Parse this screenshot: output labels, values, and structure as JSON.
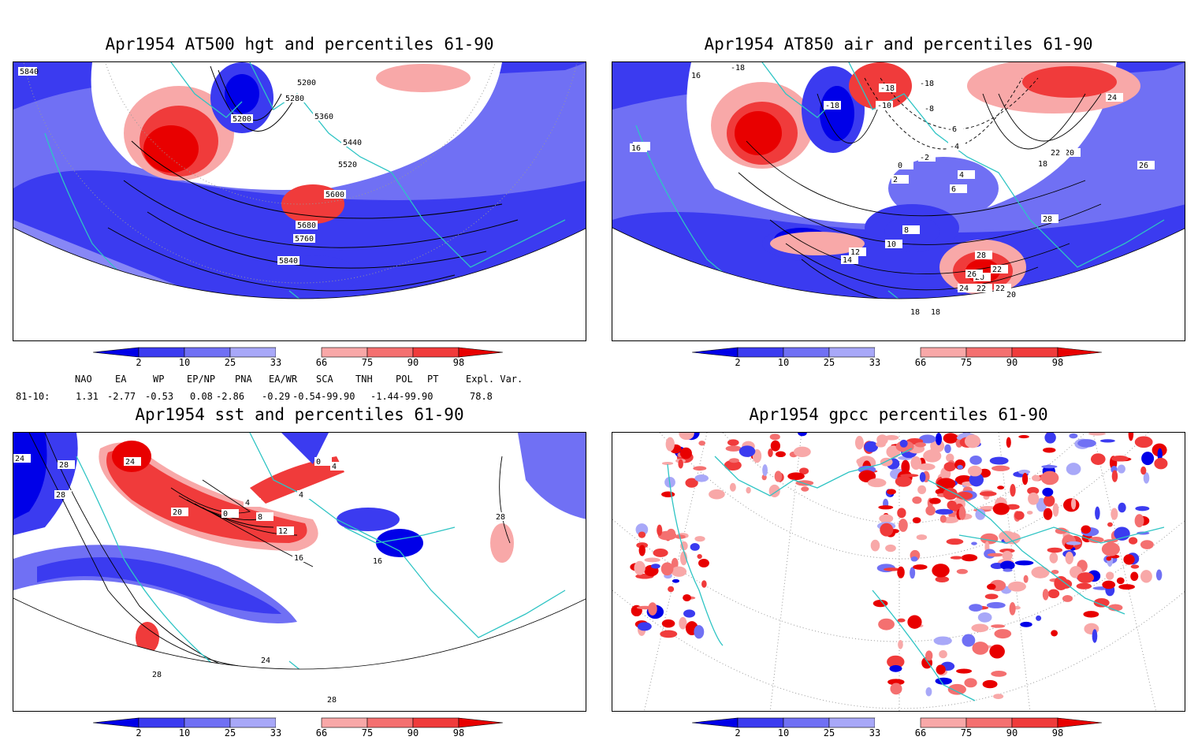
{
  "panels": [
    {
      "id": "p1",
      "title": "Apr1954 AT500 hgt and percentiles 61-90",
      "contour_labels": [
        "5840",
        "5200",
        "5280",
        "5200",
        "5360",
        "5440",
        "5520",
        "5600",
        "5680",
        "5760",
        "5840"
      ]
    },
    {
      "id": "p2",
      "title": "Apr1954 AT850 air and percentiles 61-90",
      "contour_labels": [
        "16",
        "18",
        "-18",
        "-18",
        "-18",
        "-18",
        "-10",
        "-8",
        "-6",
        "-4",
        "-2",
        "0",
        "2",
        "4",
        "6",
        "8",
        "10",
        "12",
        "14",
        "16",
        "18",
        "20",
        "22",
        "24",
        "26",
        "28",
        "22",
        "20",
        "18",
        "16",
        "24",
        "22",
        "18",
        "26",
        "28",
        "22",
        "20"
      ]
    },
    {
      "id": "p3",
      "title": "Apr1954 sst and percentiles 61-90",
      "contour_labels": [
        "24",
        "28",
        "28",
        "24",
        "20",
        "0",
        "4",
        "8",
        "12",
        "16",
        "0",
        "4",
        "4",
        "28",
        "16",
        "24",
        "28",
        "28"
      ]
    },
    {
      "id": "p4",
      "title": "Apr1954 gpcc percentiles 61-90",
      "contour_labels": []
    }
  ],
  "colorbar": {
    "ticks": [
      "2",
      "10",
      "25",
      "33",
      "66",
      "75",
      "90",
      "98"
    ],
    "colors": {
      "blue_dark": "#0000e8",
      "blue_mid": "#3b3bf0",
      "blue_light": "#7070f4",
      "blue_pale": "#a8a8f8",
      "red_pale": "#f8a8a8",
      "red_light": "#f47070",
      "red_mid": "#f03b3b",
      "red_dark": "#e80000"
    }
  },
  "indices": {
    "headers": [
      "NAO",
      "EA",
      "WP",
      "EP/NP",
      "PNA",
      "EA/WR",
      "SCA",
      "TNH",
      "POL",
      "PT",
      "Expl. Var."
    ],
    "row_label": "81-10:",
    "values": [
      "1.31",
      "-2.77",
      "-0.53",
      "0.08",
      "-2.86",
      "-0.29",
      "-0.54-99.90",
      "-1.44-99.90",
      "78.8"
    ]
  },
  "map_colors": {
    "coast": "#2ec4c4",
    "contour": "#000000",
    "grid": "#999999"
  }
}
